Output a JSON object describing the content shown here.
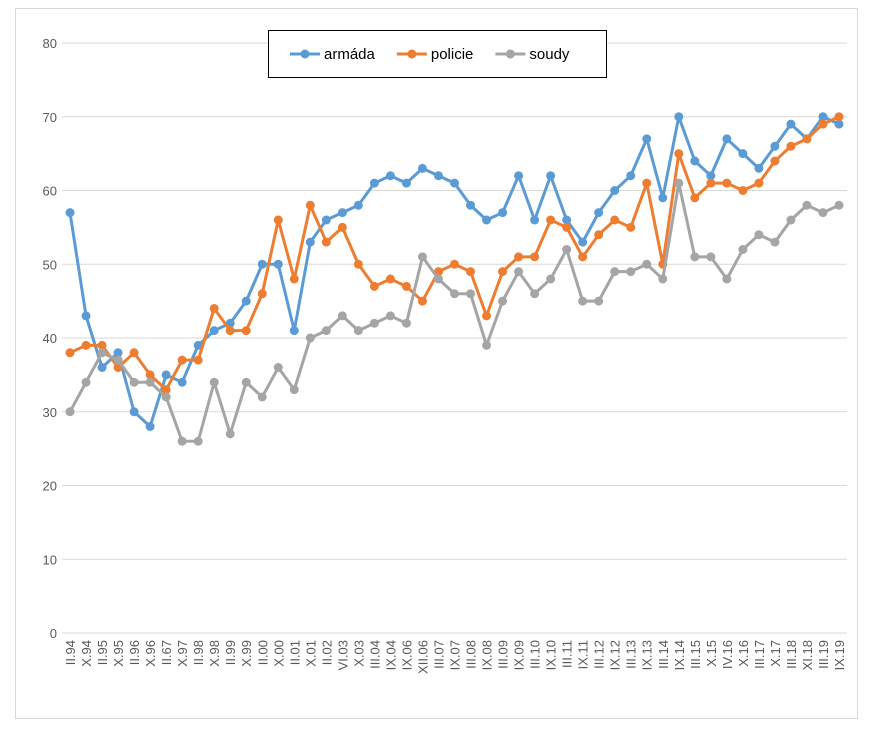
{
  "chart_data": {
    "type": "line",
    "categories": [
      "II.94",
      "X.94",
      "II.95",
      "X.95",
      "II.96",
      "X.96",
      "II.67",
      "X.97",
      "II.98",
      "X.98",
      "II.99",
      "X.99",
      "II.00",
      "X.00",
      "II.01",
      "X.01",
      "II.02",
      "VI.03",
      "X.03",
      "III.04",
      "IX.04",
      "IX.06",
      "XII.06",
      "III.07",
      "IX.07",
      "III.08",
      "IX.08",
      "III.09",
      "IX.09",
      "III.10",
      "IX.10",
      "III.11",
      "IX.11",
      "III.12",
      "IX.12",
      "III.13",
      "IX.13",
      "III.14",
      "IX.14",
      "III.15",
      "X.15",
      "IV.16",
      "X.16",
      "III.17",
      "X.17",
      "III.18",
      "XI.18",
      "III.19",
      "IX.19"
    ],
    "series": [
      {
        "name": "armáda",
        "color": "#5b9bd5",
        "values": [
          57,
          43,
          36,
          38,
          30,
          28,
          35,
          34,
          39,
          41,
          42,
          45,
          50,
          50,
          41,
          53,
          56,
          57,
          58,
          61,
          62,
          61,
          63,
          62,
          61,
          58,
          56,
          57,
          62,
          56,
          62,
          56,
          53,
          57,
          60,
          62,
          67,
          59,
          70,
          64,
          62,
          67,
          65,
          63,
          66,
          69,
          67,
          70,
          69
        ]
      },
      {
        "name": "policie",
        "color": "#ed7d31",
        "values": [
          38,
          39,
          39,
          36,
          38,
          35,
          33,
          37,
          37,
          44,
          41,
          41,
          46,
          56,
          48,
          58,
          53,
          55,
          50,
          47,
          48,
          47,
          45,
          49,
          50,
          49,
          43,
          49,
          51,
          51,
          56,
          55,
          51,
          54,
          56,
          55,
          61,
          50,
          65,
          59,
          61,
          61,
          60,
          61,
          64,
          66,
          67,
          69,
          70
        ]
      },
      {
        "name": "soudy",
        "color": "#a5a5a5",
        "values": [
          30,
          34,
          38,
          37,
          34,
          34,
          32,
          26,
          26,
          34,
          27,
          34,
          32,
          36,
          33,
          40,
          41,
          43,
          41,
          42,
          43,
          42,
          51,
          48,
          46,
          46,
          39,
          45,
          49,
          46,
          48,
          52,
          45,
          45,
          49,
          49,
          50,
          48,
          61,
          51,
          51,
          48,
          52,
          54,
          53,
          56,
          58,
          57,
          58
        ]
      }
    ],
    "ylim": [
      0,
      80
    ],
    "yticks": [
      0,
      10,
      20,
      30,
      40,
      50,
      60,
      70,
      80
    ],
    "grid": true,
    "legend": "top"
  }
}
